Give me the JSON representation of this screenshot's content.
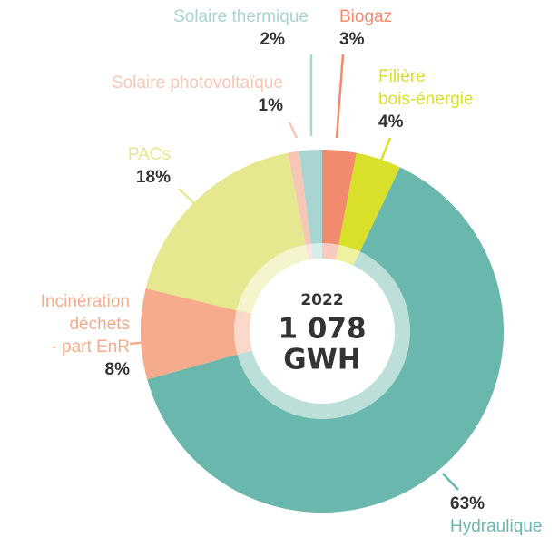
{
  "chart_data": {
    "type": "donut",
    "categories": [
      "Biogaz",
      "Filière\nbois-énergie",
      "Hydraulique",
      "Incinération\ndéchets\n- part EnR",
      "PACs",
      "Solaire photovoltaïque",
      "Solaire thermique"
    ],
    "values": [
      3,
      4,
      63,
      8,
      18,
      1,
      2
    ],
    "value_labels": [
      "3%",
      "4%",
      "63%",
      "8%",
      "18%",
      "1%",
      "2%"
    ],
    "colors": [
      "#f28b6e",
      "#d9e02a",
      "#6ab7ad",
      "#f5ab8c",
      "#e6e88f",
      "#f7c6b4",
      "#a8d5d1"
    ],
    "center_text": [
      "2022",
      "1 078",
      "GWH"
    ]
  }
}
